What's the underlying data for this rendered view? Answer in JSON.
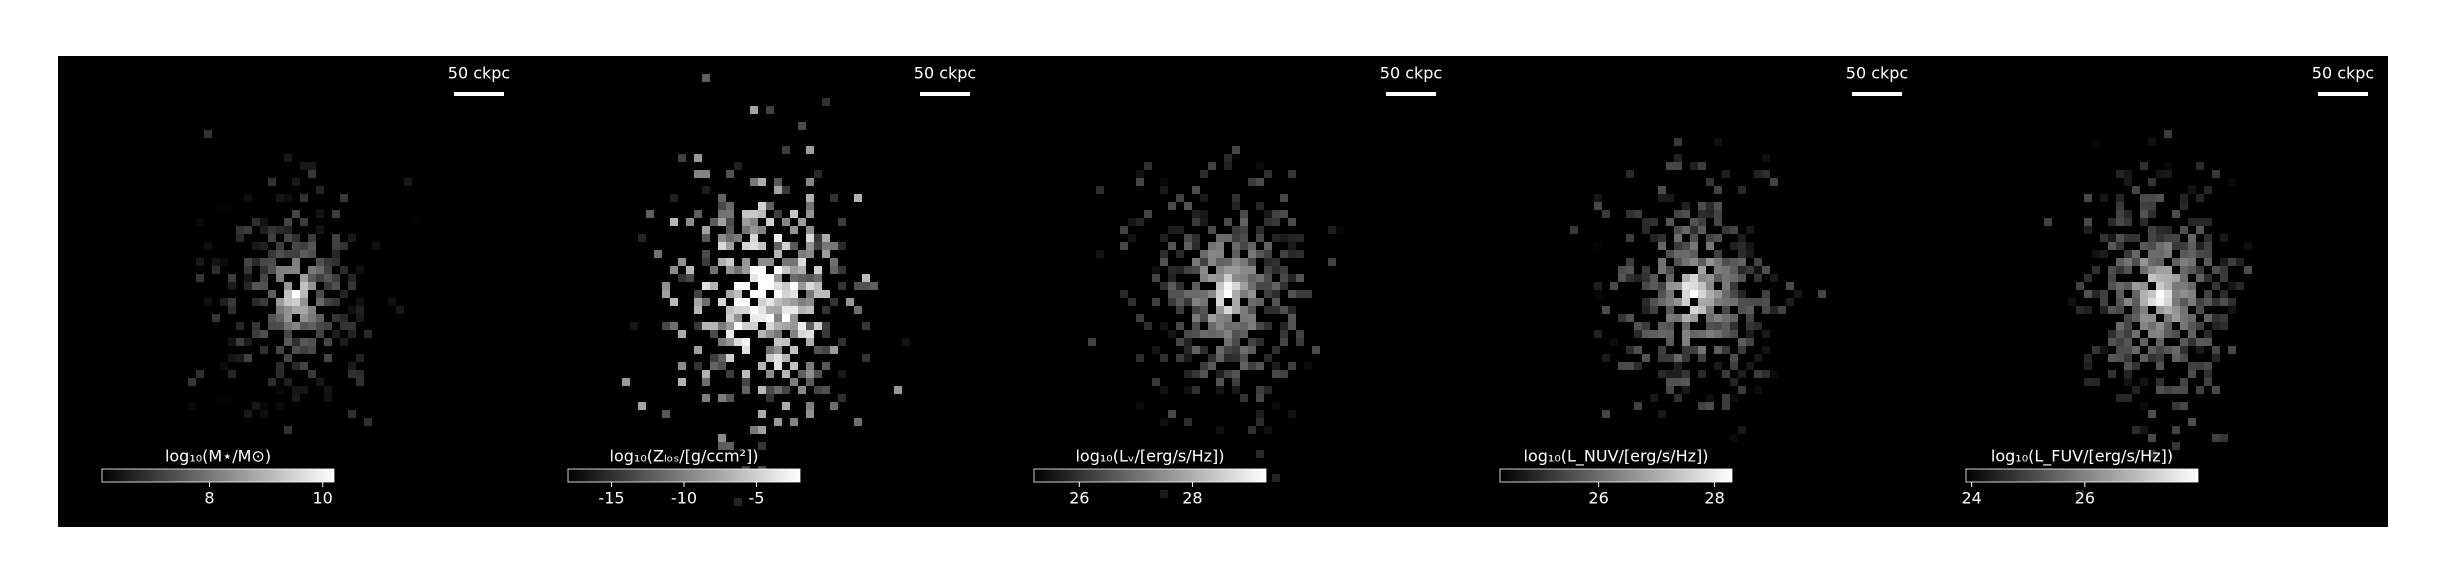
{
  "chart_data": [
    {
      "type": "image",
      "scale_bar_label": "50 ckpc",
      "colorbar_label": "log₁₀(M⋆/M⊙)",
      "clim": [
        6.1,
        10.2
      ],
      "cticks": [
        8,
        10
      ],
      "colormap": "gray"
    },
    {
      "type": "image",
      "scale_bar_label": "50 ckpc",
      "colorbar_label": "log₁₀(Zₗₒₛ/[g/ccm²])",
      "clim": [
        -18,
        -2
      ],
      "cticks": [
        -15,
        -10,
        -5
      ],
      "colormap": "gray"
    },
    {
      "type": "image",
      "scale_bar_label": "50 ckpc",
      "colorbar_label": "log₁₀(Lᵥ/[erg/s/Hz])",
      "clim": [
        25.2,
        29.3
      ],
      "cticks": [
        26,
        28
      ],
      "colormap": "gray"
    },
    {
      "type": "image",
      "scale_bar_label": "50 ckpc",
      "colorbar_label": "log₁₀(L_NUV/[erg/s/Hz])",
      "clim": [
        24.3,
        28.3
      ],
      "cticks": [
        26,
        28
      ],
      "colormap": "gray"
    },
    {
      "type": "image",
      "scale_bar_label": "50 ckpc",
      "colorbar_label": "log₁₀(L_FUV/[erg/s/Hz])",
      "clim": [
        23.9,
        28.0
      ],
      "cticks": [
        24,
        26
      ],
      "colormap": "gray"
    }
  ]
}
